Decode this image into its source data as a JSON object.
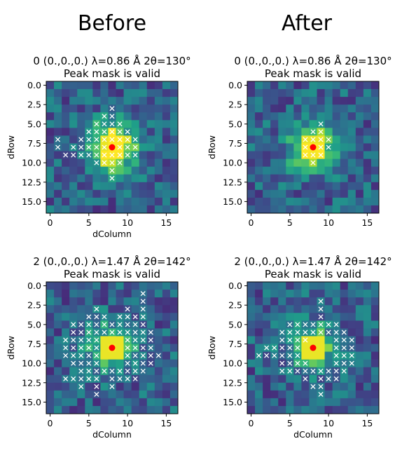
{
  "headers": {
    "before": "Before",
    "after": "After"
  },
  "chart_data": [
    {
      "type": "heatmap",
      "column": "Before",
      "title_line1": "0 (0.,0.,0.) λ=0.86 Å 2θ=130°",
      "title_line2": "Peak mask is valid",
      "xlabel": "dColumn",
      "ylabel": "dRow",
      "xticks": [
        0,
        5,
        10,
        15
      ],
      "yticks": [
        0.0,
        2.5,
        5.0,
        7.5,
        10.0,
        12.5,
        15.0
      ],
      "grid_size": 17,
      "colormap": "viridis",
      "brightness": 0.88,
      "peak": [
        8,
        8
      ],
      "peak_color": "#ff0000",
      "mask": [
        [
          3,
          8
        ],
        [
          4,
          7
        ],
        [
          4,
          8
        ],
        [
          5,
          6
        ],
        [
          5,
          7
        ],
        [
          5,
          8
        ],
        [
          5,
          9
        ],
        [
          6,
          5
        ],
        [
          6,
          6
        ],
        [
          6,
          7
        ],
        [
          6,
          8
        ],
        [
          6,
          9
        ],
        [
          6,
          10
        ],
        [
          7,
          1
        ],
        [
          7,
          4
        ],
        [
          7,
          5
        ],
        [
          7,
          6
        ],
        [
          7,
          7
        ],
        [
          7,
          8
        ],
        [
          7,
          9
        ],
        [
          7,
          10
        ],
        [
          7,
          11
        ],
        [
          8,
          1
        ],
        [
          8,
          3
        ],
        [
          8,
          4
        ],
        [
          8,
          5
        ],
        [
          8,
          6
        ],
        [
          8,
          7
        ],
        [
          8,
          8
        ],
        [
          8,
          9
        ],
        [
          8,
          10
        ],
        [
          8,
          11
        ],
        [
          9,
          2
        ],
        [
          9,
          3
        ],
        [
          9,
          4
        ],
        [
          9,
          5
        ],
        [
          9,
          6
        ],
        [
          9,
          7
        ],
        [
          9,
          8
        ],
        [
          9,
          9
        ],
        [
          9,
          10
        ],
        [
          9,
          11
        ],
        [
          10,
          6
        ],
        [
          10,
          7
        ],
        [
          10,
          8
        ],
        [
          10,
          9
        ],
        [
          11,
          8
        ],
        [
          12,
          8
        ]
      ]
    },
    {
      "type": "heatmap",
      "column": "After",
      "title_line1": "0 (0.,0.,0.) λ=0.86 Å 2θ=130°",
      "title_line2": "Peak mask is valid",
      "xlabel": "",
      "ylabel": "dRow",
      "xticks": [
        0,
        5,
        10,
        15
      ],
      "yticks": [
        0.0,
        2.5,
        5.0,
        7.5,
        10.0,
        12.5,
        15.0
      ],
      "grid_size": 17,
      "colormap": "viridis",
      "brightness": 0.72,
      "peak": [
        8,
        8
      ],
      "peak_color": "#ff0000",
      "mask": [
        [
          5,
          9
        ],
        [
          6,
          8
        ],
        [
          6,
          9
        ],
        [
          7,
          7
        ],
        [
          7,
          8
        ],
        [
          7,
          9
        ],
        [
          7,
          10
        ],
        [
          8,
          7
        ],
        [
          8,
          8
        ],
        [
          8,
          9
        ],
        [
          8,
          10
        ],
        [
          9,
          7
        ],
        [
          9,
          8
        ],
        [
          9,
          9
        ],
        [
          10,
          8
        ]
      ]
    },
    {
      "type": "heatmap",
      "column": "Before",
      "title_line1": "2 (0.,0.,0.) λ=1.47 Å 2θ=142°",
      "title_line2": "Peak mask is valid",
      "xlabel": "dColumn",
      "ylabel": "dRow",
      "xticks": [
        0,
        5,
        10,
        15
      ],
      "yticks": [
        0.0,
        2.5,
        5.0,
        7.5,
        10.0,
        12.5,
        15.0
      ],
      "grid_size": 17,
      "colormap": "viridis",
      "brightness": 0.55,
      "peak": [
        8,
        8
      ],
      "peak_color": "#ff0000",
      "mask": [
        [
          1,
          12
        ],
        [
          2,
          12
        ],
        [
          3,
          6
        ],
        [
          3,
          10
        ],
        [
          3,
          12
        ],
        [
          4,
          5
        ],
        [
          4,
          6
        ],
        [
          4,
          7
        ],
        [
          4,
          9
        ],
        [
          4,
          10
        ],
        [
          4,
          11
        ],
        [
          4,
          12
        ],
        [
          5,
          3
        ],
        [
          5,
          4
        ],
        [
          5,
          5
        ],
        [
          5,
          6
        ],
        [
          5,
          7
        ],
        [
          5,
          8
        ],
        [
          5,
          9
        ],
        [
          5,
          10
        ],
        [
          5,
          11
        ],
        [
          5,
          12
        ],
        [
          6,
          3
        ],
        [
          6,
          4
        ],
        [
          6,
          5
        ],
        [
          6,
          6
        ],
        [
          6,
          7
        ],
        [
          6,
          8
        ],
        [
          6,
          9
        ],
        [
          6,
          10
        ],
        [
          6,
          11
        ],
        [
          6,
          12
        ],
        [
          6,
          13
        ],
        [
          7,
          2
        ],
        [
          7,
          3
        ],
        [
          7,
          4
        ],
        [
          7,
          5
        ],
        [
          7,
          6
        ],
        [
          7,
          10
        ],
        [
          7,
          11
        ],
        [
          7,
          12
        ],
        [
          7,
          13
        ],
        [
          8,
          2
        ],
        [
          8,
          3
        ],
        [
          8,
          4
        ],
        [
          8,
          5
        ],
        [
          8,
          6
        ],
        [
          8,
          10
        ],
        [
          8,
          11
        ],
        [
          8,
          12
        ],
        [
          8,
          13
        ],
        [
          9,
          2
        ],
        [
          9,
          3
        ],
        [
          9,
          4
        ],
        [
          9,
          5
        ],
        [
          9,
          6
        ],
        [
          9,
          10
        ],
        [
          9,
          11
        ],
        [
          9,
          12
        ],
        [
          9,
          13
        ],
        [
          9,
          14
        ],
        [
          10,
          3
        ],
        [
          10,
          4
        ],
        [
          10,
          5
        ],
        [
          10,
          6
        ],
        [
          10,
          10
        ],
        [
          10,
          11
        ],
        [
          10,
          12
        ],
        [
          10,
          13
        ],
        [
          11,
          4
        ],
        [
          11,
          5
        ],
        [
          11,
          6
        ],
        [
          11,
          7
        ],
        [
          11,
          8
        ],
        [
          11,
          9
        ],
        [
          11,
          10
        ],
        [
          11,
          11
        ],
        [
          11,
          12
        ],
        [
          12,
          2
        ],
        [
          12,
          3
        ],
        [
          12,
          4
        ],
        [
          12,
          5
        ],
        [
          12,
          6
        ],
        [
          12,
          8
        ],
        [
          12,
          9
        ],
        [
          12,
          10
        ],
        [
          12,
          11
        ],
        [
          13,
          4
        ],
        [
          13,
          6
        ],
        [
          13,
          8
        ],
        [
          14,
          6
        ]
      ]
    },
    {
      "type": "heatmap",
      "column": "After",
      "title_line1": "2 (0.,0.,0.) λ=1.47 Å 2θ=142°",
      "title_line2": "Peak mask is valid",
      "xlabel": "dColumn",
      "ylabel": "dRow",
      "xticks": [
        0,
        5,
        10,
        15
      ],
      "yticks": [
        0.0,
        2.5,
        5.0,
        7.5,
        10.0,
        12.5,
        15.0
      ],
      "grid_size": 17,
      "colormap": "viridis",
      "brightness": 0.5,
      "peak": [
        8,
        8
      ],
      "peak_color": "#ff0000",
      "mask": [
        [
          2,
          9
        ],
        [
          3,
          9
        ],
        [
          4,
          9
        ],
        [
          5,
          5
        ],
        [
          5,
          6
        ],
        [
          5,
          7
        ],
        [
          5,
          8
        ],
        [
          5,
          9
        ],
        [
          5,
          10
        ],
        [
          5,
          11
        ],
        [
          6,
          4
        ],
        [
          6,
          5
        ],
        [
          6,
          6
        ],
        [
          6,
          7
        ],
        [
          6,
          8
        ],
        [
          6,
          9
        ],
        [
          6,
          10
        ],
        [
          6,
          11
        ],
        [
          6,
          12
        ],
        [
          7,
          4
        ],
        [
          7,
          5
        ],
        [
          7,
          6
        ],
        [
          7,
          7
        ],
        [
          7,
          11
        ],
        [
          7,
          12
        ],
        [
          7,
          13
        ],
        [
          8,
          2
        ],
        [
          8,
          3
        ],
        [
          8,
          4
        ],
        [
          8,
          5
        ],
        [
          8,
          6
        ],
        [
          8,
          11
        ],
        [
          8,
          12
        ],
        [
          8,
          13
        ],
        [
          9,
          1
        ],
        [
          9,
          2
        ],
        [
          9,
          3
        ],
        [
          9,
          4
        ],
        [
          9,
          5
        ],
        [
          9,
          6
        ],
        [
          9,
          11
        ],
        [
          9,
          12
        ],
        [
          9,
          13
        ],
        [
          10,
          4
        ],
        [
          10,
          5
        ],
        [
          10,
          6
        ],
        [
          10,
          7
        ],
        [
          10,
          11
        ],
        [
          10,
          12
        ],
        [
          10,
          13
        ],
        [
          11,
          4
        ],
        [
          11,
          5
        ],
        [
          11,
          6
        ],
        [
          11,
          7
        ],
        [
          11,
          8
        ],
        [
          11,
          9
        ],
        [
          11,
          10
        ],
        [
          11,
          11
        ],
        [
          11,
          12
        ],
        [
          12,
          7
        ],
        [
          12,
          9
        ],
        [
          12,
          10
        ],
        [
          12,
          11
        ],
        [
          13,
          8
        ],
        [
          13,
          9
        ],
        [
          14,
          9
        ]
      ]
    }
  ]
}
